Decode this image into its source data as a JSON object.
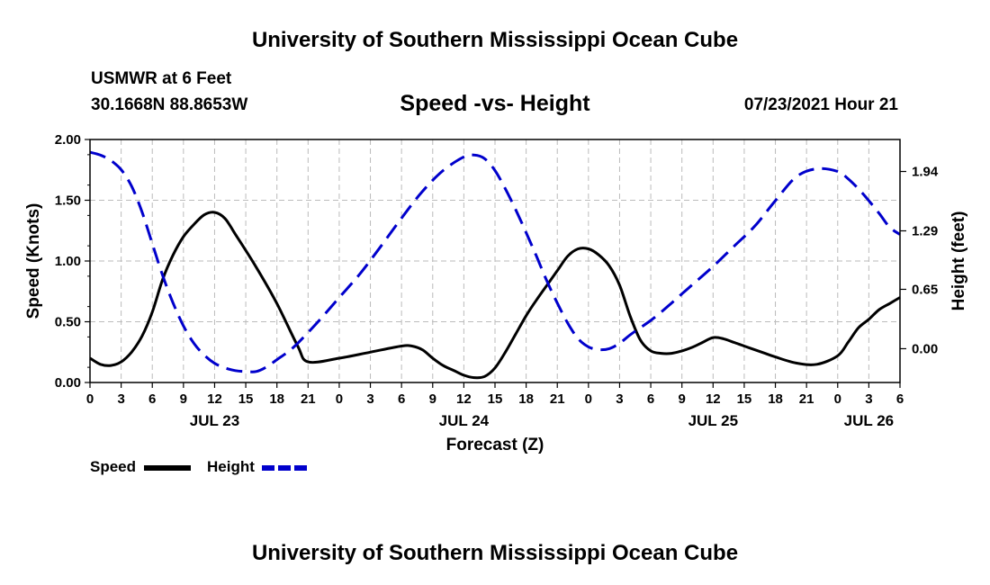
{
  "page": {
    "title_top": "University of Southern Mississippi Ocean Cube",
    "title_bottom": "University of Southern Mississippi Ocean Cube",
    "station": "USMWR at 6 Feet",
    "coordinates": "30.1668N  88.8653W",
    "date": "07/23/2021 Hour 21"
  },
  "colors": {
    "speed": "#000000",
    "height": "#0000cc",
    "grid": "#bbbbbb"
  },
  "chart_data": {
    "type": "line",
    "title": "Speed -vs- Height",
    "xlabel": "Forecast (Z)",
    "ylabel": "Speed (Knots)",
    "y2label": "Height (feet)",
    "x_unit": "hours from 2021-07-23 00Z",
    "xlim": [
      0,
      78
    ],
    "ylim": [
      0,
      2.0
    ],
    "y2lim": [
      -0.37,
      2.29
    ],
    "x_ticks": [
      0,
      3,
      6,
      9,
      12,
      15,
      18,
      21,
      24,
      27,
      30,
      33,
      36,
      39,
      42,
      45,
      48,
      51,
      54,
      57,
      60,
      63,
      66,
      69,
      72,
      75,
      78
    ],
    "x_tick_labels": [
      "0",
      "3",
      "6",
      "9",
      "12",
      "15",
      "18",
      "21",
      "0",
      "3",
      "6",
      "9",
      "12",
      "15",
      "18",
      "21",
      "0",
      "3",
      "6",
      "9",
      "12",
      "15",
      "18",
      "21",
      "0",
      "3",
      "6"
    ],
    "day_labels": [
      {
        "label": "JUL 23",
        "x": 12
      },
      {
        "label": "JUL 24",
        "x": 36
      },
      {
        "label": "JUL 25",
        "x": 60
      },
      {
        "label": "JUL 26",
        "x": 75
      }
    ],
    "y_ticks": [
      0,
      0.5,
      1.0,
      1.5,
      2.0
    ],
    "y_tick_labels": [
      "0.00",
      "0.50",
      "1.00",
      "1.50",
      "2.00"
    ],
    "y2_ticks": [
      0,
      0.65,
      1.29,
      1.94
    ],
    "y2_tick_labels": [
      "0.00",
      "0.65",
      "1.29",
      "1.94"
    ],
    "grid": true,
    "legend": [
      {
        "name": "Speed",
        "style": "solid"
      },
      {
        "name": "Height",
        "style": "dashed"
      }
    ],
    "series": [
      {
        "name": "Speed",
        "axis": "left",
        "x": [
          0,
          1,
          2,
          3,
          4,
          5,
          6,
          7,
          8,
          9,
          10,
          11,
          12,
          13,
          14,
          16,
          18,
          20,
          21,
          24,
          27,
          30,
          31,
          32,
          33,
          34,
          35,
          36,
          37,
          38,
          39,
          40,
          41,
          42,
          43,
          44,
          45,
          46,
          47,
          48,
          49,
          50,
          51,
          52,
          53,
          54,
          55,
          56,
          57,
          58,
          59,
          60,
          61,
          62,
          63,
          64,
          65,
          66,
          68,
          70,
          72,
          73,
          74,
          75,
          76,
          77,
          78
        ],
        "values": [
          0.2,
          0.15,
          0.14,
          0.17,
          0.25,
          0.38,
          0.58,
          0.85,
          1.05,
          1.2,
          1.3,
          1.38,
          1.4,
          1.35,
          1.22,
          0.95,
          0.65,
          0.3,
          0.17,
          0.2,
          0.25,
          0.3,
          0.3,
          0.27,
          0.2,
          0.14,
          0.1,
          0.06,
          0.04,
          0.05,
          0.12,
          0.25,
          0.4,
          0.55,
          0.68,
          0.8,
          0.92,
          1.04,
          1.1,
          1.1,
          1.05,
          0.96,
          0.8,
          0.55,
          0.35,
          0.26,
          0.24,
          0.24,
          0.26,
          0.29,
          0.33,
          0.37,
          0.36,
          0.33,
          0.3,
          0.27,
          0.24,
          0.21,
          0.16,
          0.15,
          0.22,
          0.33,
          0.45,
          0.52,
          0.6,
          0.65,
          0.7
        ]
      },
      {
        "name": "Height",
        "axis": "right",
        "x": [
          0,
          1,
          2,
          3,
          4,
          5,
          6,
          7,
          8,
          9,
          10,
          11,
          12,
          13,
          14,
          15,
          16,
          17,
          18,
          19,
          20,
          22,
          24,
          26,
          28,
          30,
          32,
          34,
          36,
          37,
          38,
          39,
          40,
          41,
          42,
          43,
          44,
          45,
          46,
          47,
          48,
          49,
          50,
          51,
          52,
          53,
          54,
          55,
          56,
          57,
          58,
          60,
          62,
          64,
          66,
          68,
          70,
          72,
          73,
          74,
          75,
          76,
          77,
          78
        ],
        "values": [
          2.15,
          2.12,
          2.06,
          1.96,
          1.78,
          1.5,
          1.15,
          0.8,
          0.5,
          0.25,
          0.06,
          -0.07,
          -0.16,
          -0.21,
          -0.24,
          -0.25,
          -0.25,
          -0.2,
          -0.12,
          -0.04,
          0.06,
          0.3,
          0.56,
          0.82,
          1.12,
          1.43,
          1.72,
          1.95,
          2.1,
          2.12,
          2.08,
          1.95,
          1.75,
          1.52,
          1.27,
          1.01,
          0.74,
          0.5,
          0.28,
          0.11,
          0.02,
          -0.01,
          0.0,
          0.06,
          0.15,
          0.23,
          0.31,
          0.4,
          0.5,
          0.6,
          0.7,
          0.9,
          1.12,
          1.34,
          1.62,
          1.88,
          1.97,
          1.94,
          1.86,
          1.75,
          1.62,
          1.48,
          1.33,
          1.25
        ]
      }
    ]
  }
}
